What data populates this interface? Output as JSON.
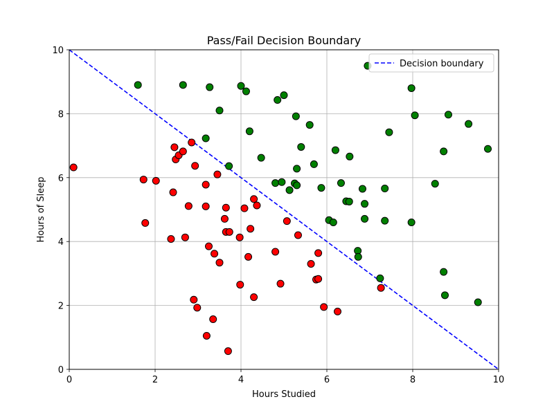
{
  "chart_data": {
    "type": "scatter",
    "title": "Pass/Fail Decision Boundary",
    "xlabel": "Hours Studied",
    "ylabel": "Hours of Sleep",
    "xlim": [
      0,
      10
    ],
    "ylim": [
      0,
      10
    ],
    "xticks": [
      "0",
      "2",
      "4",
      "6",
      "8",
      "10"
    ],
    "yticks": [
      "0",
      "2",
      "4",
      "6",
      "8",
      "10"
    ],
    "grid": true,
    "legend_position": "top-right",
    "colors": {
      "pass": "#008000",
      "fail": "#ff0000",
      "boundary": "#0000ff",
      "marker_edge": "#000000",
      "grid": "#b0b0b0"
    },
    "boundary": {
      "label": "Decision boundary",
      "style": "dashed",
      "points": [
        [
          0,
          10
        ],
        [
          10,
          0
        ]
      ]
    },
    "series": [
      {
        "color_key": "pass",
        "points": [
          [
            1.6,
            8.9
          ],
          [
            2.65,
            8.9
          ],
          [
            3.27,
            8.83
          ],
          [
            4.0,
            8.87
          ],
          [
            4.12,
            8.7
          ],
          [
            5.0,
            8.58
          ],
          [
            4.85,
            8.43
          ],
          [
            6.95,
            9.5
          ],
          [
            7.97,
            8.8
          ],
          [
            3.5,
            8.1
          ],
          [
            5.28,
            7.92
          ],
          [
            5.6,
            7.65
          ],
          [
            4.2,
            7.45
          ],
          [
            8.05,
            7.95
          ],
          [
            8.83,
            7.97
          ],
          [
            9.3,
            7.68
          ],
          [
            7.45,
            7.42
          ],
          [
            3.18,
            7.23
          ],
          [
            5.4,
            6.96
          ],
          [
            6.2,
            6.86
          ],
          [
            8.72,
            6.82
          ],
          [
            9.75,
            6.9
          ],
          [
            4.47,
            6.62
          ],
          [
            6.53,
            6.66
          ],
          [
            5.7,
            6.42
          ],
          [
            3.72,
            6.36
          ],
          [
            5.3,
            6.28
          ],
          [
            4.8,
            5.83
          ],
          [
            4.95,
            5.86
          ],
          [
            5.25,
            5.82
          ],
          [
            5.3,
            5.76
          ],
          [
            5.13,
            5.61
          ],
          [
            5.87,
            5.68
          ],
          [
            6.33,
            5.83
          ],
          [
            6.83,
            5.65
          ],
          [
            7.35,
            5.66
          ],
          [
            8.52,
            5.81
          ],
          [
            6.45,
            5.26
          ],
          [
            6.52,
            5.25
          ],
          [
            6.88,
            5.18
          ],
          [
            6.05,
            4.67
          ],
          [
            6.15,
            4.6
          ],
          [
            6.88,
            4.71
          ],
          [
            7.35,
            4.65
          ],
          [
            7.97,
            4.6
          ],
          [
            6.72,
            3.71
          ],
          [
            6.73,
            3.52
          ],
          [
            7.24,
            2.85
          ],
          [
            8.72,
            3.05
          ],
          [
            8.75,
            2.32
          ],
          [
            9.52,
            2.1
          ]
        ]
      },
      {
        "color_key": "fail",
        "points": [
          [
            0.1,
            6.32
          ],
          [
            1.73,
            5.94
          ],
          [
            2.02,
            5.9
          ],
          [
            1.77,
            4.58
          ],
          [
            2.45,
            6.95
          ],
          [
            2.48,
            6.57
          ],
          [
            2.55,
            6.7
          ],
          [
            2.65,
            6.82
          ],
          [
            2.85,
            7.1
          ],
          [
            2.93,
            6.37
          ],
          [
            2.42,
            5.54
          ],
          [
            3.18,
            5.78
          ],
          [
            3.45,
            6.1
          ],
          [
            2.78,
            5.11
          ],
          [
            3.18,
            5.1
          ],
          [
            3.65,
            5.06
          ],
          [
            2.37,
            4.08
          ],
          [
            2.7,
            4.13
          ],
          [
            3.62,
            4.71
          ],
          [
            3.65,
            4.3
          ],
          [
            3.73,
            4.3
          ],
          [
            4.08,
            5.04
          ],
          [
            4.3,
            5.33
          ],
          [
            4.37,
            5.13
          ],
          [
            4.22,
            4.4
          ],
          [
            3.97,
            4.13
          ],
          [
            3.25,
            3.85
          ],
          [
            3.38,
            3.62
          ],
          [
            3.5,
            3.34
          ],
          [
            4.17,
            3.52
          ],
          [
            4.8,
            3.68
          ],
          [
            5.07,
            4.64
          ],
          [
            5.33,
            4.2
          ],
          [
            5.63,
            3.3
          ],
          [
            5.8,
            3.64
          ],
          [
            5.75,
            2.81
          ],
          [
            5.8,
            2.83
          ],
          [
            3.98,
            2.65
          ],
          [
            4.92,
            2.68
          ],
          [
            4.3,
            2.26
          ],
          [
            2.9,
            2.18
          ],
          [
            2.98,
            1.93
          ],
          [
            3.35,
            1.57
          ],
          [
            3.2,
            1.05
          ],
          [
            3.7,
            0.57
          ],
          [
            5.93,
            1.95
          ],
          [
            6.25,
            1.81
          ],
          [
            7.26,
            2.55
          ]
        ]
      }
    ]
  }
}
